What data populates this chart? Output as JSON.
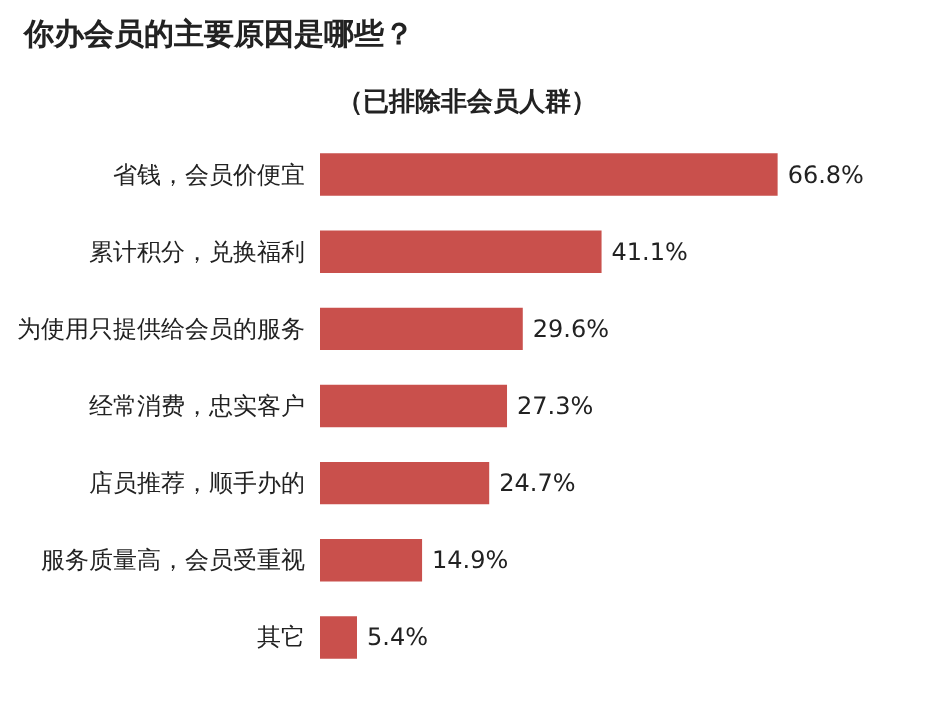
{
  "chart_data": {
    "type": "bar",
    "orientation": "horizontal",
    "title": "你办会员的主要原因是哪些？",
    "subtitle": "（已排除非会员人群）",
    "categories": [
      "省钱，会员价便宜",
      "累计积分，兑换福利",
      "为使用只提供给会员的服务",
      "经常消费，忠实客户",
      "店员推荐，顺手办的",
      "服务质量高，会员受重视",
      "其它"
    ],
    "values": [
      66.8,
      41.1,
      29.6,
      27.3,
      24.7,
      14.9,
      5.4
    ],
    "value_labels": [
      "66.8%",
      "41.1%",
      "29.6%",
      "27.3%",
      "24.7%",
      "14.9%",
      "5.4%"
    ],
    "color": "#c9504c"
  }
}
